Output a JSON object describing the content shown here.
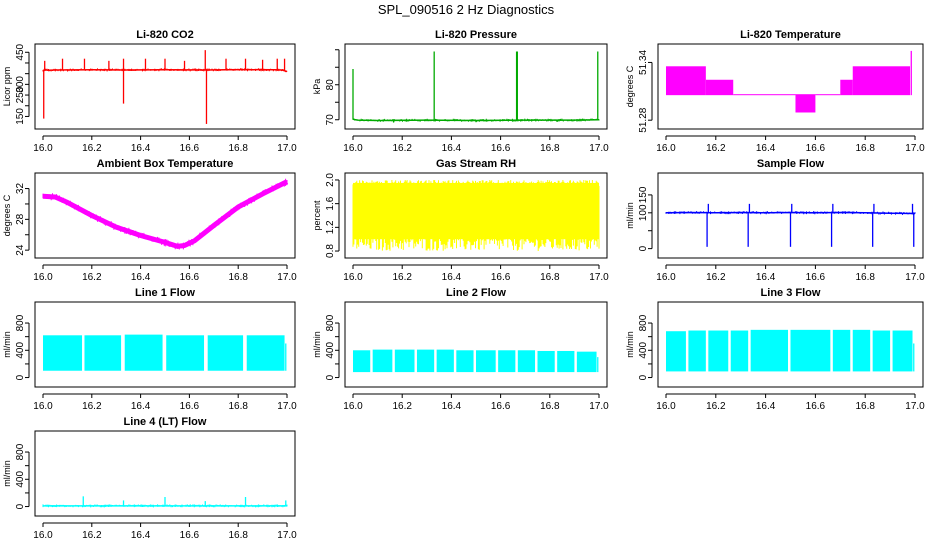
{
  "figure": {
    "title": "SPL_090516  2 Hz Diagnostics"
  },
  "chart_data": [
    {
      "type": "line",
      "title": "Li-820 CO2",
      "ylabel": "Licor ppm",
      "color": "#ff0000",
      "xlim": [
        16.0,
        17.0
      ],
      "ylim": [
        110,
        470
      ],
      "xticks": [
        16.0,
        16.2,
        16.4,
        16.6,
        16.8,
        17.0
      ],
      "yticks": [
        150,
        200,
        250,
        300,
        350,
        400,
        450
      ],
      "ytick_labels": [
        "150",
        "",
        "250",
        "300",
        "",
        "",
        "450"
      ],
      "style": "noisy-line",
      "series": [
        {
          "x": [
            16.0,
            16.01,
            16.02,
            16.05,
            16.2,
            16.33,
            16.5,
            16.67,
            16.8,
            16.95,
            16.98,
            17.0
          ],
          "y": [
            365,
            368,
            366,
            367,
            368,
            367,
            368,
            367,
            369,
            368,
            367,
            360
          ]
        }
      ],
      "spikes": [
        {
          "x": 16.003,
          "y": 140
        },
        {
          "x": 16.007,
          "y": 410
        },
        {
          "x": 16.08,
          "y": 420
        },
        {
          "x": 16.17,
          "y": 420
        },
        {
          "x": 16.27,
          "y": 410
        },
        {
          "x": 16.33,
          "y": 210
        },
        {
          "x": 16.33,
          "y": 420
        },
        {
          "x": 16.42,
          "y": 420
        },
        {
          "x": 16.5,
          "y": 420
        },
        {
          "x": 16.58,
          "y": 410
        },
        {
          "x": 16.665,
          "y": 460
        },
        {
          "x": 16.67,
          "y": 115
        },
        {
          "x": 16.75,
          "y": 420
        },
        {
          "x": 16.83,
          "y": 420
        },
        {
          "x": 16.9,
          "y": 415
        },
        {
          "x": 16.96,
          "y": 420
        },
        {
          "x": 16.99,
          "y": 420
        }
      ]
    },
    {
      "type": "line",
      "title": "Li-820 Pressure",
      "ylabel": "kPa",
      "color": "#00aa00",
      "xlim": [
        16.0,
        17.0
      ],
      "ylim": [
        68.5,
        90.5
      ],
      "xticks": [
        16.0,
        16.2,
        16.4,
        16.6,
        16.8,
        17.0
      ],
      "yticks": [
        70,
        75,
        80,
        85,
        90
      ],
      "ytick_labels": [
        "70",
        "",
        "80",
        "",
        ""
      ],
      "style": "noisy-line",
      "series": [
        {
          "x": [
            16.0,
            16.01,
            16.02,
            16.1,
            16.3,
            16.5,
            16.7,
            16.9,
            17.0
          ],
          "y": [
            70.2,
            70.0,
            69.9,
            69.8,
            69.9,
            69.8,
            69.9,
            69.9,
            70.0
          ]
        }
      ],
      "spikes": [
        {
          "x": 16.0,
          "y": 84.5
        },
        {
          "x": 16.165,
          "y": 69.2
        },
        {
          "x": 16.33,
          "y": 89.5
        },
        {
          "x": 16.5,
          "y": 69.3
        },
        {
          "x": 16.665,
          "y": 89.5
        },
        {
          "x": 16.668,
          "y": 89.5
        },
        {
          "x": 16.83,
          "y": 69.4
        },
        {
          "x": 16.995,
          "y": 89.5
        }
      ]
    },
    {
      "type": "line",
      "title": "Li-820 Temperature",
      "ylabel": "degrees C",
      "color": "#ff00ff",
      "xlim": [
        16.0,
        17.0
      ],
      "ylim": [
        51.275,
        51.355
      ],
      "xticks": [
        16.0,
        16.2,
        16.4,
        16.6,
        16.8,
        17.0
      ],
      "yticks": [
        51.28,
        51.34
      ],
      "ytick_labels": [
        "51.28",
        "51.34"
      ],
      "style": "band",
      "bands": [
        {
          "x0": 16.0,
          "x1": 16.16,
          "lo": 51.306,
          "hi": 51.336
        },
        {
          "x0": 16.16,
          "x1": 16.27,
          "lo": 51.306,
          "hi": 51.322
        },
        {
          "x0": 16.27,
          "x1": 16.52,
          "lo": 51.306,
          "hi": 51.307
        },
        {
          "x0": 16.52,
          "x1": 16.6,
          "lo": 51.288,
          "hi": 51.307
        },
        {
          "x0": 16.6,
          "x1": 16.7,
          "lo": 51.306,
          "hi": 51.307
        },
        {
          "x0": 16.7,
          "x1": 16.75,
          "lo": 51.306,
          "hi": 51.322
        },
        {
          "x0": 16.75,
          "x1": 16.98,
          "lo": 51.306,
          "hi": 51.336
        }
      ],
      "spikes": [
        {
          "x": 16.985,
          "y": 51.352
        }
      ]
    },
    {
      "type": "line",
      "title": "Ambient Box Temperature",
      "ylabel": "degrees C",
      "color": "#ff00ff",
      "xlim": [
        16.0,
        17.0
      ],
      "ylim": [
        23.5,
        33.5
      ],
      "xticks": [
        16.0,
        16.2,
        16.4,
        16.6,
        16.8,
        17.0
      ],
      "yticks": [
        24,
        26,
        28,
        30,
        32
      ],
      "ytick_labels": [
        "24",
        "",
        "28",
        "",
        "32"
      ],
      "style": "thick-line",
      "series": [
        {
          "x": [
            16.0,
            16.05,
            16.1,
            16.2,
            16.3,
            16.4,
            16.5,
            16.55,
            16.58,
            16.62,
            16.7,
            16.8,
            16.9,
            17.0
          ],
          "y": [
            31.0,
            30.9,
            30.2,
            28.5,
            27.0,
            25.9,
            25.0,
            24.5,
            24.6,
            25.2,
            27.2,
            29.6,
            31.3,
            32.9
          ]
        }
      ]
    },
    {
      "type": "line",
      "title": "Gas Stream RH",
      "ylabel": "percent",
      "color": "#ffff00",
      "xlim": [
        16.0,
        17.0
      ],
      "ylim": [
        0.75,
        2.05
      ],
      "xticks": [
        16.0,
        16.2,
        16.4,
        16.6,
        16.8,
        17.0
      ],
      "yticks": [
        0.8,
        1.2,
        1.6,
        2.0
      ],
      "ytick_labels": [
        "0.8",
        "1.2",
        "1.6",
        "2.0"
      ],
      "style": "band",
      "bands": [
        {
          "x0": 16.0,
          "x1": 17.0,
          "lo": 1.0,
          "hi": 1.95
        }
      ],
      "noise_range": [
        0.8,
        2.0
      ]
    },
    {
      "type": "line",
      "title": "Sample Flow",
      "ylabel": "ml/min",
      "color": "#0000ff",
      "xlim": [
        16.0,
        17.0
      ],
      "ylim": [
        -15,
        200
      ],
      "xticks": [
        16.0,
        16.2,
        16.4,
        16.6,
        16.8,
        17.0
      ],
      "yticks": [
        0,
        50,
        100,
        150
      ],
      "ytick_labels": [
        "0",
        "",
        "100",
        "150"
      ],
      "style": "noisy-line",
      "series": [
        {
          "x": [
            16.0,
            16.1,
            16.2,
            16.3,
            16.4,
            16.5,
            16.6,
            16.7,
            16.8,
            16.9,
            17.0
          ],
          "y": [
            100,
            101,
            100,
            101,
            100,
            101,
            100,
            101,
            100,
            99,
            98
          ]
        }
      ],
      "spikes": [
        {
          "x": 16.165,
          "y": 5
        },
        {
          "x": 16.33,
          "y": 5
        },
        {
          "x": 16.5,
          "y": 5
        },
        {
          "x": 16.665,
          "y": 5
        },
        {
          "x": 16.83,
          "y": 5
        },
        {
          "x": 16.995,
          "y": 5
        },
        {
          "x": 16.17,
          "y": 125
        },
        {
          "x": 16.335,
          "y": 125
        },
        {
          "x": 16.505,
          "y": 125
        },
        {
          "x": 16.67,
          "y": 125
        },
        {
          "x": 16.835,
          "y": 125
        },
        {
          "x": 16.99,
          "y": 125
        }
      ]
    },
    {
      "type": "line",
      "title": "Line 1 Flow",
      "ylabel": "ml/min",
      "color": "#00ffff",
      "xlim": [
        16.0,
        17.0
      ],
      "ylim": [
        -80,
        1050
      ],
      "xticks": [
        16.0,
        16.2,
        16.4,
        16.6,
        16.8,
        17.0
      ],
      "yticks": [
        0,
        200,
        400,
        600,
        800
      ],
      "ytick_labels": [
        "0",
        "",
        "400",
        "",
        "800"
      ],
      "style": "band",
      "bands": [
        {
          "x0": 16.0,
          "x1": 16.16,
          "lo": 100,
          "hi": 620
        },
        {
          "x0": 16.17,
          "x1": 16.32,
          "lo": 100,
          "hi": 620
        },
        {
          "x0": 16.335,
          "x1": 16.49,
          "lo": 100,
          "hi": 630
        },
        {
          "x0": 16.505,
          "x1": 16.66,
          "lo": 100,
          "hi": 620
        },
        {
          "x0": 16.675,
          "x1": 16.82,
          "lo": 100,
          "hi": 620
        },
        {
          "x0": 16.835,
          "x1": 16.99,
          "lo": 100,
          "hi": 620
        }
      ],
      "spikes": [
        {
          "x": 16.995,
          "y": 500
        }
      ]
    },
    {
      "type": "line",
      "title": "Line 2 Flow",
      "ylabel": "ml/min",
      "color": "#00ffff",
      "xlim": [
        16.0,
        17.0
      ],
      "ylim": [
        -80,
        1050
      ],
      "xticks": [
        16.0,
        16.2,
        16.4,
        16.6,
        16.8,
        17.0
      ],
      "yticks": [
        0,
        200,
        400,
        600,
        800
      ],
      "ytick_labels": [
        "0",
        "",
        "400",
        "",
        "800"
      ],
      "style": "band",
      "bands": [
        {
          "x0": 16.0,
          "x1": 16.07,
          "lo": 80,
          "hi": 400
        },
        {
          "x0": 16.08,
          "x1": 16.16,
          "lo": 80,
          "hi": 410
        },
        {
          "x0": 16.17,
          "x1": 16.25,
          "lo": 80,
          "hi": 410
        },
        {
          "x0": 16.26,
          "x1": 16.33,
          "lo": 80,
          "hi": 410
        },
        {
          "x0": 16.34,
          "x1": 16.41,
          "lo": 80,
          "hi": 410
        },
        {
          "x0": 16.42,
          "x1": 16.49,
          "lo": 80,
          "hi": 400
        },
        {
          "x0": 16.5,
          "x1": 16.58,
          "lo": 80,
          "hi": 400
        },
        {
          "x0": 16.59,
          "x1": 16.66,
          "lo": 80,
          "hi": 400
        },
        {
          "x0": 16.67,
          "x1": 16.74,
          "lo": 80,
          "hi": 400
        },
        {
          "x0": 16.75,
          "x1": 16.82,
          "lo": 80,
          "hi": 390
        },
        {
          "x0": 16.83,
          "x1": 16.9,
          "lo": 80,
          "hi": 390
        },
        {
          "x0": 16.91,
          "x1": 16.99,
          "lo": 80,
          "hi": 380
        }
      ],
      "spikes": [
        {
          "x": 16.995,
          "y": 300
        }
      ]
    },
    {
      "type": "line",
      "title": "Line 3 Flow",
      "ylabel": "ml/min",
      "color": "#00ffff",
      "xlim": [
        16.0,
        17.0
      ],
      "ylim": [
        -80,
        1050
      ],
      "xticks": [
        16.0,
        16.2,
        16.4,
        16.6,
        16.8,
        17.0
      ],
      "yticks": [
        0,
        200,
        400,
        600,
        800
      ],
      "ytick_labels": [
        "0",
        "",
        "400",
        "",
        "800"
      ],
      "style": "band",
      "bands": [
        {
          "x0": 16.0,
          "x1": 16.08,
          "lo": 90,
          "hi": 680
        },
        {
          "x0": 16.09,
          "x1": 16.16,
          "lo": 90,
          "hi": 690
        },
        {
          "x0": 16.17,
          "x1": 16.25,
          "lo": 90,
          "hi": 690
        },
        {
          "x0": 16.26,
          "x1": 16.33,
          "lo": 90,
          "hi": 690
        },
        {
          "x0": 16.34,
          "x1": 16.49,
          "lo": 90,
          "hi": 700
        },
        {
          "x0": 16.5,
          "x1": 16.66,
          "lo": 90,
          "hi": 700
        },
        {
          "x0": 16.67,
          "x1": 16.74,
          "lo": 90,
          "hi": 700
        },
        {
          "x0": 16.75,
          "x1": 16.82,
          "lo": 90,
          "hi": 700
        },
        {
          "x0": 16.83,
          "x1": 16.9,
          "lo": 90,
          "hi": 690
        },
        {
          "x0": 16.91,
          "x1": 16.99,
          "lo": 90,
          "hi": 690
        }
      ],
      "spikes": [
        {
          "x": 16.995,
          "y": 500
        }
      ]
    },
    {
      "type": "line",
      "title": "Line 4 (LT) Flow",
      "ylabel": "ml/min",
      "color": "#00ffff",
      "xlim": [
        16.0,
        17.0
      ],
      "ylim": [
        -80,
        1050
      ],
      "xticks": [
        16.0,
        16.2,
        16.4,
        16.6,
        16.8,
        17.0
      ],
      "yticks": [
        0,
        200,
        400,
        600,
        800
      ],
      "ytick_labels": [
        "0",
        "",
        "400",
        "",
        "800"
      ],
      "style": "noisy-line",
      "series": [
        {
          "x": [
            16.0,
            16.2,
            16.4,
            16.6,
            16.8,
            17.0
          ],
          "y": [
            10,
            10,
            10,
            10,
            10,
            10
          ]
        }
      ],
      "spikes": [
        {
          "x": 16.165,
          "y": 150
        },
        {
          "x": 16.33,
          "y": 90
        },
        {
          "x": 16.5,
          "y": 140
        },
        {
          "x": 16.665,
          "y": 80
        },
        {
          "x": 16.83,
          "y": 140
        },
        {
          "x": 16.995,
          "y": 90
        }
      ]
    }
  ]
}
